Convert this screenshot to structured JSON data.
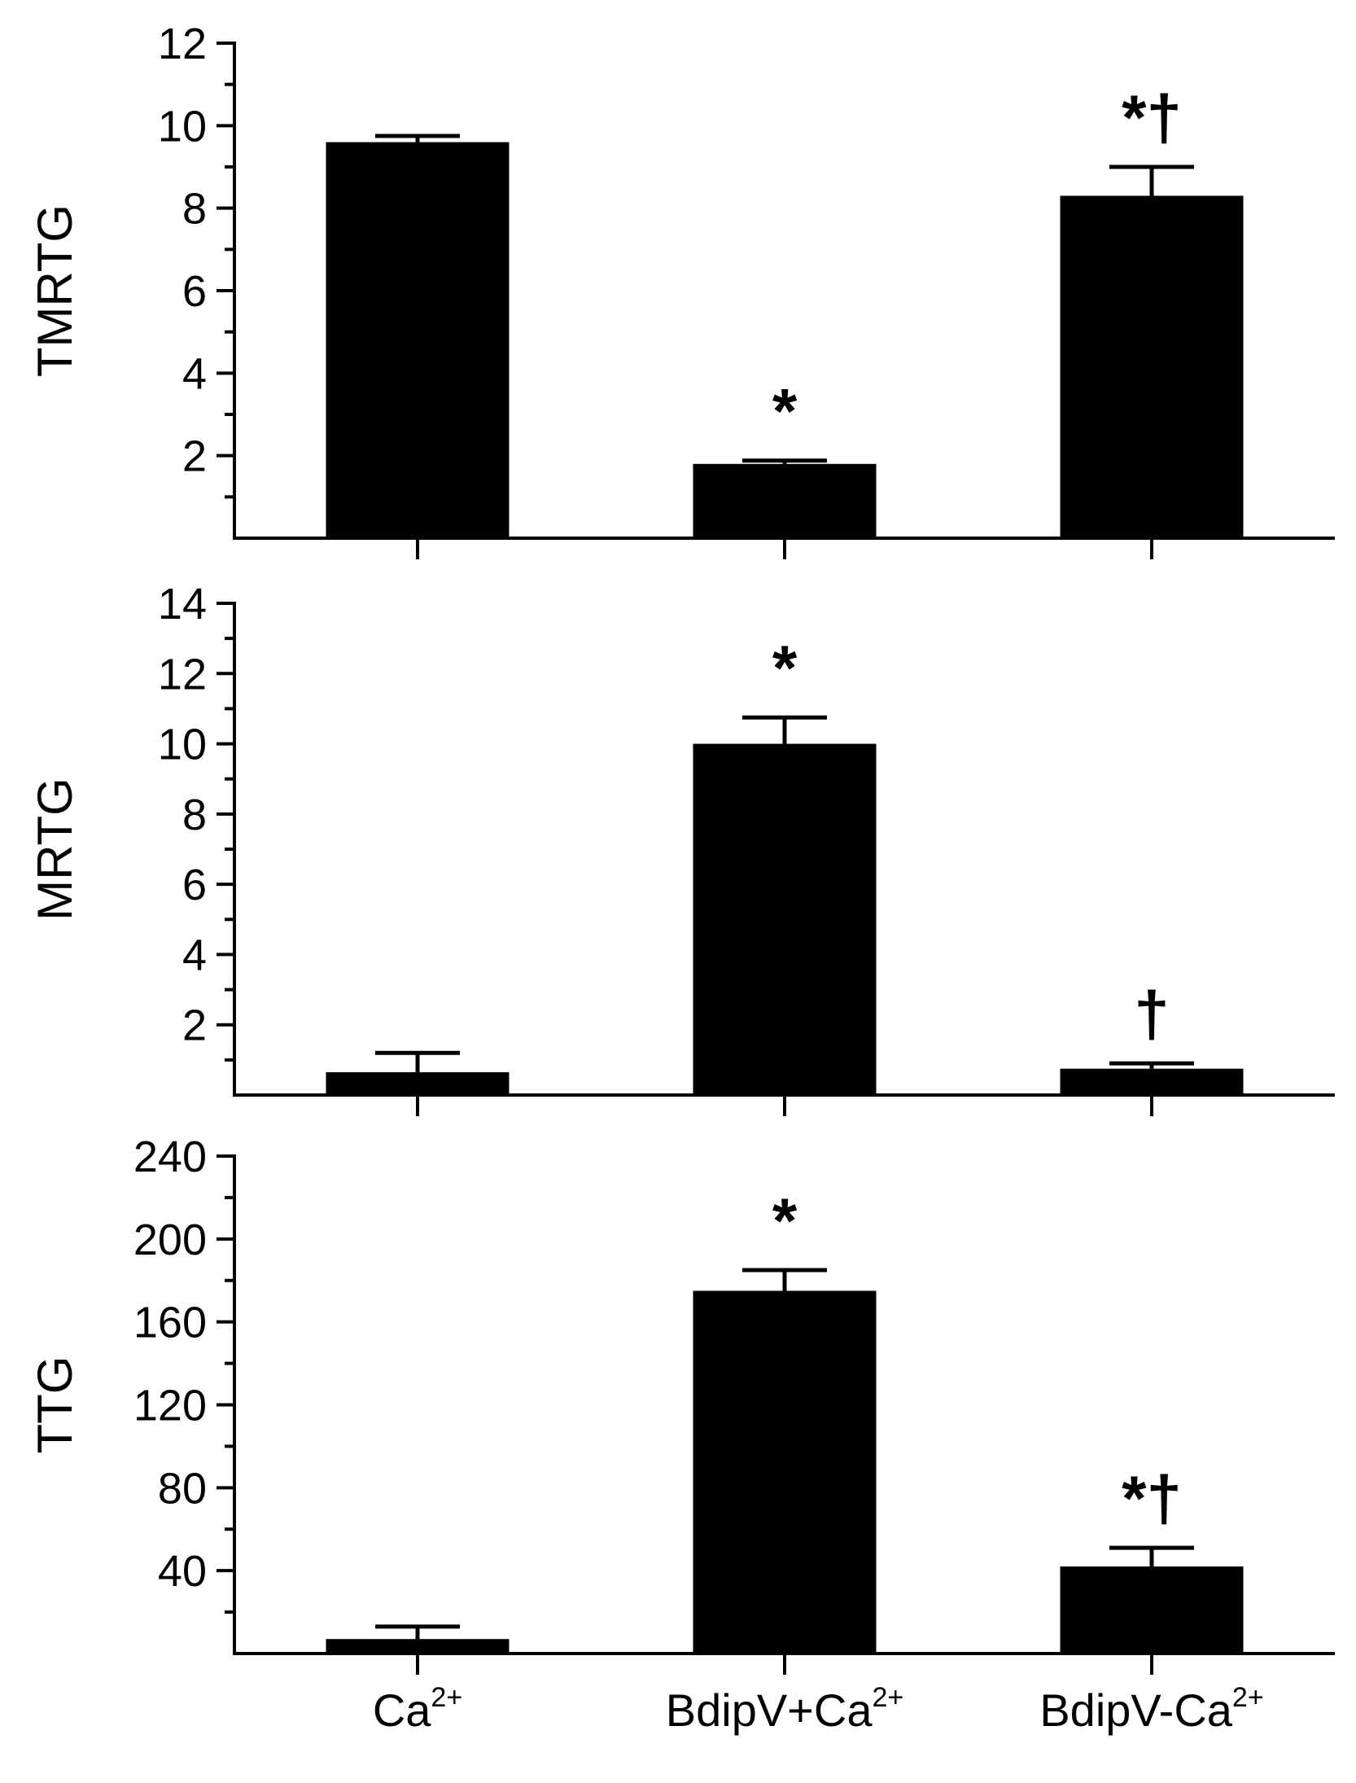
{
  "chart_data": [
    {
      "type": "bar",
      "ylabel": "TMRTG",
      "ylim": [
        0,
        12
      ],
      "yticks": [
        2,
        4,
        6,
        8,
        10,
        12
      ],
      "categories": [
        "Ca2+",
        "BdipV+Ca2+",
        "BdipV-Ca2+"
      ],
      "values": [
        9.6,
        1.8,
        8.3
      ],
      "errors": [
        0.15,
        0.08,
        0.7
      ],
      "markers": [
        "",
        "*",
        "*†"
      ]
    },
    {
      "type": "bar",
      "ylabel": "MRTG",
      "ylim": [
        0,
        14
      ],
      "yticks": [
        2,
        4,
        6,
        8,
        10,
        12,
        14
      ],
      "categories": [
        "Ca2+",
        "BdipV+Ca2+",
        "BdipV-Ca2+"
      ],
      "values": [
        0.65,
        10.0,
        0.75
      ],
      "errors": [
        0.55,
        0.75,
        0.15
      ],
      "markers": [
        "",
        "*",
        "†"
      ]
    },
    {
      "type": "bar",
      "ylabel": "TTG",
      "ylim": [
        0,
        240
      ],
      "yticks": [
        40,
        80,
        120,
        160,
        200,
        240
      ],
      "categories": [
        "Ca2+",
        "BdipV+Ca2+",
        "BdipV-Ca2+"
      ],
      "values": [
        7,
        175,
        42
      ],
      "errors": [
        6,
        10,
        9
      ],
      "markers": [
        "",
        "*",
        "*†"
      ]
    }
  ],
  "x_labels": [
    {
      "base": "Ca",
      "sup": "2+"
    },
    {
      "base": "BdipV+Ca",
      "sup": "2+"
    },
    {
      "base": "BdipV-Ca",
      "sup": "2+"
    }
  ],
  "colors": {
    "bar": "#000000",
    "axis": "#000000"
  }
}
